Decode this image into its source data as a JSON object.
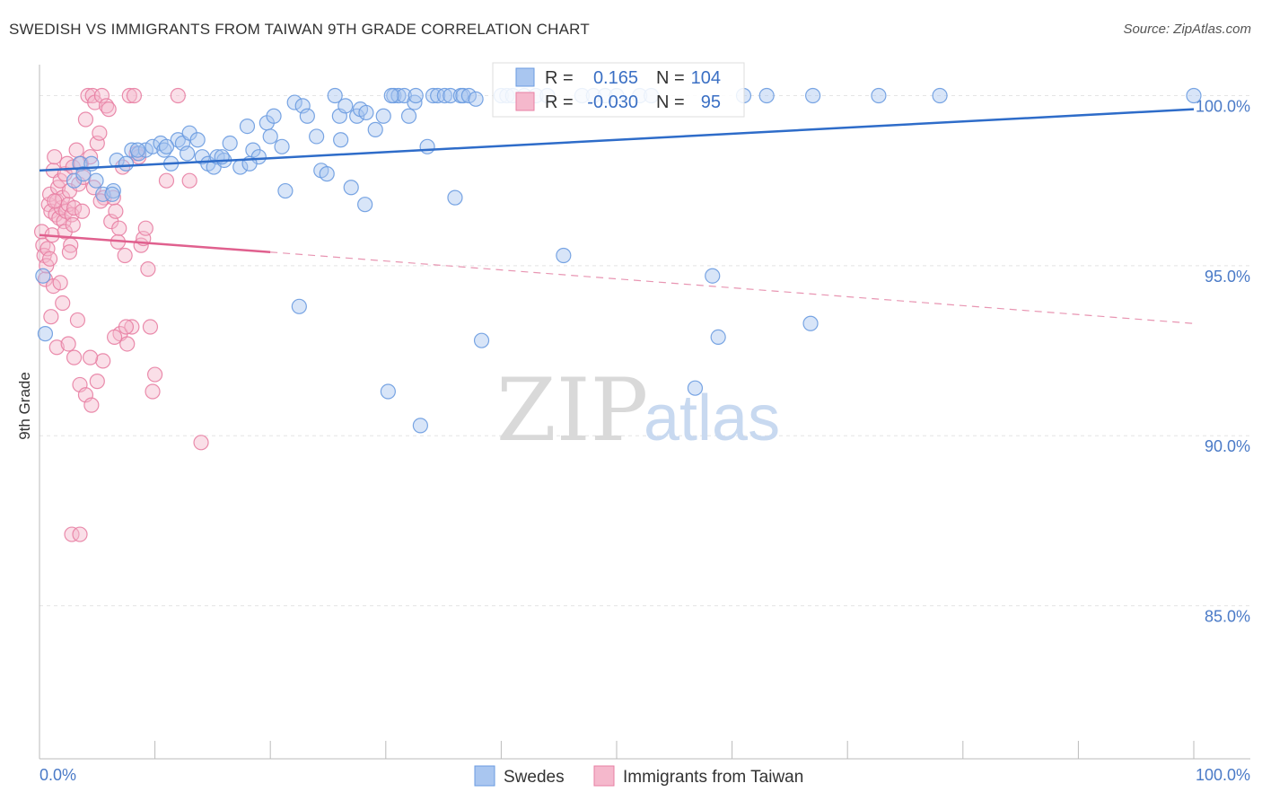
{
  "chart_data": {
    "type": "scatter",
    "title": "SWEDISH VS IMMIGRANTS FROM TAIWAN 9TH GRADE CORRELATION CHART",
    "source": "Source: ZipAtlas.com",
    "ylabel": "9th Grade",
    "xlabel": "",
    "xlim": [
      0,
      100
    ],
    "ylim": [
      80.5,
      100.7
    ],
    "x_tick_labels": [
      "0.0%",
      "100.0%"
    ],
    "y_ticks": [
      {
        "value": 100,
        "label": "100.0%"
      },
      {
        "value": 95,
        "label": "95.0%"
      },
      {
        "value": 90,
        "label": "90.0%"
      },
      {
        "value": 85,
        "label": "85.0%"
      }
    ],
    "grid": true,
    "watermark": {
      "zip": "ZIP",
      "atlas": "atlas"
    },
    "legend": {
      "position": "top-center",
      "rows": [
        {
          "r_label": "R =",
          "r_value": "0.165",
          "n_label": "N =",
          "n_value": "104",
          "color": "#a9c6f0"
        },
        {
          "r_label": "R =",
          "r_value": "-0.030",
          "n_label": "N =",
          "n_value": "95",
          "color": "#f5b8cc"
        }
      ]
    },
    "series": [
      {
        "name": "Swedes",
        "color": "#6a9be0",
        "fill": "#a9c6f0",
        "trend": {
          "x": [
            0,
            100
          ],
          "y": [
            97.8,
            99.6
          ]
        },
        "points": [
          [
            0.5,
            93.0
          ],
          [
            0.3,
            94.7
          ],
          [
            3.0,
            97.5
          ],
          [
            3.5,
            98.0
          ],
          [
            3.8,
            97.7
          ],
          [
            4.5,
            98.0
          ],
          [
            4.9,
            97.5
          ],
          [
            5.5,
            97.1
          ],
          [
            6.4,
            97.2
          ],
          [
            6.3,
            97.1
          ],
          [
            6.7,
            98.1
          ],
          [
            7.5,
            98.0
          ],
          [
            8.0,
            98.4
          ],
          [
            8.6,
            98.3
          ],
          [
            9.2,
            98.4
          ],
          [
            9.8,
            98.5
          ],
          [
            10.5,
            98.6
          ],
          [
            10.8,
            98.4
          ],
          [
            11.4,
            98.0
          ],
          [
            12.0,
            98.7
          ],
          [
            12.4,
            98.6
          ],
          [
            12.8,
            98.3
          ],
          [
            13.0,
            98.9
          ],
          [
            13.7,
            98.7
          ],
          [
            14.1,
            98.2
          ],
          [
            14.6,
            98.0
          ],
          [
            15.1,
            97.9
          ],
          [
            15.4,
            98.2
          ],
          [
            16.0,
            98.1
          ],
          [
            16.5,
            98.6
          ],
          [
            17.4,
            97.9
          ],
          [
            18.0,
            99.1
          ],
          [
            18.5,
            98.4
          ],
          [
            19.0,
            98.2
          ],
          [
            19.7,
            99.2
          ],
          [
            20.3,
            99.4
          ],
          [
            21.0,
            98.5
          ],
          [
            21.3,
            97.2
          ],
          [
            22.1,
            99.8
          ],
          [
            22.8,
            99.7
          ],
          [
            23.2,
            99.4
          ],
          [
            24.0,
            98.8
          ],
          [
            24.4,
            97.8
          ],
          [
            24.9,
            97.7
          ],
          [
            25.6,
            100.0
          ],
          [
            26.0,
            99.4
          ],
          [
            26.5,
            99.7
          ],
          [
            26.1,
            98.7
          ],
          [
            27.0,
            97.3
          ],
          [
            27.5,
            99.4
          ],
          [
            27.8,
            99.6
          ],
          [
            28.3,
            99.5
          ],
          [
            28.2,
            96.8
          ],
          [
            29.1,
            99.0
          ],
          [
            29.8,
            99.4
          ],
          [
            30.2,
            91.3
          ],
          [
            30.7,
            100.0
          ],
          [
            31.1,
            100.0
          ],
          [
            31.6,
            100.0
          ],
          [
            32.0,
            99.4
          ],
          [
            32.5,
            99.8
          ],
          [
            32.6,
            100.0
          ],
          [
            33.0,
            90.3
          ],
          [
            33.6,
            98.5
          ],
          [
            34.1,
            100.0
          ],
          [
            34.5,
            100.0
          ],
          [
            35.1,
            100.0
          ],
          [
            35.6,
            100.0
          ],
          [
            36.0,
            97.0
          ],
          [
            36.5,
            100.0
          ],
          [
            36.7,
            100.0
          ],
          [
            37.2,
            100.0
          ],
          [
            37.8,
            99.9
          ],
          [
            38.3,
            92.8
          ],
          [
            40.0,
            100.0
          ],
          [
            40.5,
            100.0
          ],
          [
            41.0,
            100.0
          ],
          [
            42.0,
            100.0
          ],
          [
            43.0,
            100.0
          ],
          [
            44.0,
            100.0
          ],
          [
            45.4,
            95.3
          ],
          [
            47.0,
            100.0
          ],
          [
            48.0,
            100.0
          ],
          [
            49.0,
            100.0
          ],
          [
            50.0,
            100.0
          ],
          [
            52.0,
            100.0
          ],
          [
            53.0,
            100.0
          ],
          [
            56.8,
            91.4
          ],
          [
            58.3,
            94.7
          ],
          [
            58.8,
            92.9
          ],
          [
            61.0,
            100.0
          ],
          [
            63.0,
            100.0
          ],
          [
            67.0,
            100.0
          ],
          [
            66.8,
            93.3
          ],
          [
            72.7,
            100.0
          ],
          [
            78.0,
            100.0
          ],
          [
            100.0,
            100.0
          ],
          [
            22.5,
            93.8
          ],
          [
            18.2,
            98.0
          ],
          [
            8.5,
            98.4
          ],
          [
            15.8,
            98.2
          ],
          [
            11.0,
            98.5
          ],
          [
            20.0,
            98.8
          ],
          [
            30.5,
            100.0
          ]
        ]
      },
      {
        "name": "Immigrants from Taiwan",
        "color": "#e87fa3",
        "fill": "#f5b8cc",
        "trend_solid": {
          "x": [
            0,
            20
          ],
          "y": [
            95.9,
            95.4
          ]
        },
        "trend_dashed": {
          "x": [
            20,
            100
          ],
          "y": [
            95.4,
            93.3
          ]
        },
        "points": [
          [
            0.2,
            96.0
          ],
          [
            0.3,
            95.6
          ],
          [
            0.4,
            95.3
          ],
          [
            0.5,
            94.6
          ],
          [
            0.6,
            95.0
          ],
          [
            0.7,
            95.5
          ],
          [
            0.8,
            96.8
          ],
          [
            0.9,
            97.1
          ],
          [
            1.0,
            96.6
          ],
          [
            1.1,
            95.9
          ],
          [
            1.2,
            97.8
          ],
          [
            1.3,
            98.2
          ],
          [
            1.4,
            96.5
          ],
          [
            1.5,
            96.9
          ],
          [
            1.6,
            97.3
          ],
          [
            1.7,
            96.4
          ],
          [
            1.8,
            97.5
          ],
          [
            1.9,
            96.7
          ],
          [
            2.0,
            97.0
          ],
          [
            2.1,
            96.3
          ],
          [
            2.2,
            97.7
          ],
          [
            2.3,
            96.6
          ],
          [
            2.4,
            98.0
          ],
          [
            2.5,
            96.8
          ],
          [
            2.6,
            97.2
          ],
          [
            2.7,
            95.6
          ],
          [
            2.8,
            96.5
          ],
          [
            2.9,
            97.9
          ],
          [
            3.0,
            96.7
          ],
          [
            3.2,
            98.4
          ],
          [
            3.4,
            97.4
          ],
          [
            3.6,
            98.0
          ],
          [
            3.8,
            97.6
          ],
          [
            4.0,
            99.3
          ],
          [
            4.2,
            100.0
          ],
          [
            4.4,
            98.2
          ],
          [
            4.6,
            100.0
          ],
          [
            4.8,
            99.8
          ],
          [
            5.0,
            98.6
          ],
          [
            5.2,
            98.9
          ],
          [
            5.4,
            100.0
          ],
          [
            5.6,
            97.0
          ],
          [
            5.8,
            99.7
          ],
          [
            6.0,
            99.6
          ],
          [
            6.2,
            96.3
          ],
          [
            6.4,
            97.0
          ],
          [
            6.6,
            96.6
          ],
          [
            6.8,
            95.7
          ],
          [
            7.0,
            93.0
          ],
          [
            7.2,
            97.9
          ],
          [
            7.4,
            95.3
          ],
          [
            7.6,
            92.7
          ],
          [
            7.8,
            100.0
          ],
          [
            8.0,
            93.2
          ],
          [
            8.2,
            100.0
          ],
          [
            8.4,
            98.3
          ],
          [
            8.6,
            98.2
          ],
          [
            8.8,
            95.6
          ],
          [
            9.0,
            95.8
          ],
          [
            9.2,
            96.1
          ],
          [
            9.4,
            94.9
          ],
          [
            9.6,
            93.2
          ],
          [
            9.8,
            91.3
          ],
          [
            10.0,
            91.8
          ],
          [
            11.0,
            97.5
          ],
          [
            12.0,
            100.0
          ],
          [
            13.0,
            97.5
          ],
          [
            14.0,
            89.8
          ],
          [
            1.0,
            93.5
          ],
          [
            1.5,
            92.6
          ],
          [
            2.0,
            93.9
          ],
          [
            2.5,
            92.7
          ],
          [
            3.0,
            92.3
          ],
          [
            3.5,
            91.5
          ],
          [
            4.0,
            91.2
          ],
          [
            4.5,
            90.9
          ],
          [
            5.0,
            91.6
          ],
          [
            5.5,
            92.2
          ],
          [
            1.2,
            94.4
          ],
          [
            1.8,
            94.5
          ],
          [
            2.6,
            95.4
          ],
          [
            3.3,
            93.4
          ],
          [
            4.4,
            92.3
          ],
          [
            6.5,
            92.9
          ],
          [
            7.5,
            93.2
          ],
          [
            2.8,
            87.1
          ],
          [
            3.5,
            87.1
          ],
          [
            0.9,
            95.2
          ],
          [
            1.3,
            96.9
          ],
          [
            2.2,
            96.0
          ],
          [
            2.9,
            96.2
          ],
          [
            3.7,
            96.6
          ],
          [
            4.7,
            97.3
          ],
          [
            5.3,
            96.9
          ],
          [
            6.9,
            96.1
          ]
        ]
      }
    ]
  }
}
